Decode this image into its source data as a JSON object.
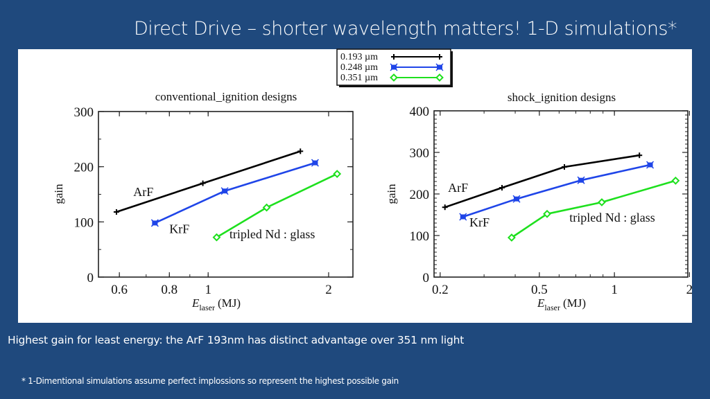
{
  "slide": {
    "title": "Direct Drive – shorter wavelength matters!  1-D simulations*",
    "caption": "Highest gain for least energy:  the ArF 193nm has distinct advantage over 351 nm light",
    "footnote": "* 1-Dimentional simulations assume perfect implossions so represent the highest possible gain",
    "background_color": "#1f497d"
  },
  "legend": {
    "entries": [
      {
        "label": "0.193 µm",
        "color": "#000000",
        "marker": "plus"
      },
      {
        "label": "0.248 µm",
        "color": "#1f45e8",
        "marker": "x-square"
      },
      {
        "label": "0.351 µm",
        "color": "#1ee01e",
        "marker": "diamond"
      }
    ]
  },
  "chart_data": [
    {
      "type": "line",
      "title": "conventional_ignition designs",
      "xlabel_main": "E",
      "xlabel_sub": "laser",
      "xlabel_unit": "(MJ)",
      "ylabel": "gain",
      "xscale": "log",
      "xlim": [
        0.532,
        2.3
      ],
      "ylim": [
        0,
        300
      ],
      "x_major_ticks": [
        0.6,
        0.8,
        1,
        2
      ],
      "x_tick_labels": [
        "0.6",
        "0.8",
        "1",
        "2"
      ],
      "x_minor_ticks": [
        0.6,
        0.7,
        0.8,
        0.9,
        1,
        2
      ],
      "y_major_ticks": [
        0,
        100,
        200,
        300
      ],
      "y_tick_labels": [
        "0",
        "100",
        "200",
        "300"
      ],
      "y_minor_step": 50,
      "series": [
        {
          "name": "ArF",
          "legend": "0.193 µm",
          "color": "#000000",
          "marker": "plus",
          "x": [
            0.59,
            0.97,
            1.7
          ],
          "y": [
            118,
            170,
            228
          ]
        },
        {
          "name": "KrF",
          "legend": "0.248 µm",
          "color": "#1f45e8",
          "marker": "x-square",
          "x": [
            0.736,
            1.1,
            1.85
          ],
          "y": [
            98,
            156,
            207
          ]
        },
        {
          "name": "tripled Nd : glass",
          "legend": "0.351 µm",
          "color": "#1ee01e",
          "marker": "diamond",
          "x": [
            1.05,
            1.4,
            2.1
          ],
          "y": [
            72,
            126,
            187
          ]
        }
      ],
      "annotations": [
        {
          "text": "ArF",
          "x": 0.65,
          "y": 147
        },
        {
          "text": "KrF",
          "x": 0.8,
          "y": 80
        },
        {
          "text": "tripled Nd : glass",
          "x": 1.13,
          "y": 70
        }
      ]
    },
    {
      "type": "line",
      "title": "shock_ignition designs",
      "xlabel_main": "E",
      "xlabel_sub": "laser",
      "xlabel_unit": "(MJ)",
      "ylabel": "gain",
      "xscale": "log",
      "xlim": [
        0.189,
        1.97
      ],
      "ylim": [
        0,
        400
      ],
      "x_major_ticks": [
        0.2,
        0.5,
        1,
        2
      ],
      "x_tick_labels": [
        "0.2",
        "0.5",
        "1",
        "2"
      ],
      "x_minor_ticks": [
        0.3,
        0.4,
        0.5,
        0.6,
        0.7,
        0.8,
        0.9,
        1
      ],
      "y_major_ticks": [
        0,
        100,
        200,
        300,
        400
      ],
      "y_tick_labels": [
        "0",
        "100",
        "200",
        "300",
        "400"
      ],
      "y_minor_step": 10,
      "series": [
        {
          "name": "ArF",
          "legend": "0.193 µm",
          "color": "#000000",
          "marker": "plus",
          "x": [
            0.209,
            0.354,
            0.63,
            1.26
          ],
          "y": [
            168,
            215,
            265,
            293
          ]
        },
        {
          "name": "KrF",
          "legend": "0.248 µm",
          "color": "#1f45e8",
          "marker": "x-square",
          "x": [
            0.247,
            0.405,
            0.735,
            1.39
          ],
          "y": [
            145,
            188,
            233,
            270
          ]
        },
        {
          "name": "tripled Nd : glass",
          "legend": "0.351 µm",
          "color": "#1ee01e",
          "marker": "diamond",
          "x": [
            0.387,
            0.537,
            0.89,
            1.76
          ],
          "y": [
            95,
            152,
            180,
            232
          ]
        }
      ],
      "annotations": [
        {
          "text": "ArF",
          "x": 0.215,
          "y": 205
        },
        {
          "text": "KrF",
          "x": 0.262,
          "y": 122
        },
        {
          "text": "tripled Nd : glass",
          "x": 0.66,
          "y": 133
        }
      ]
    }
  ]
}
